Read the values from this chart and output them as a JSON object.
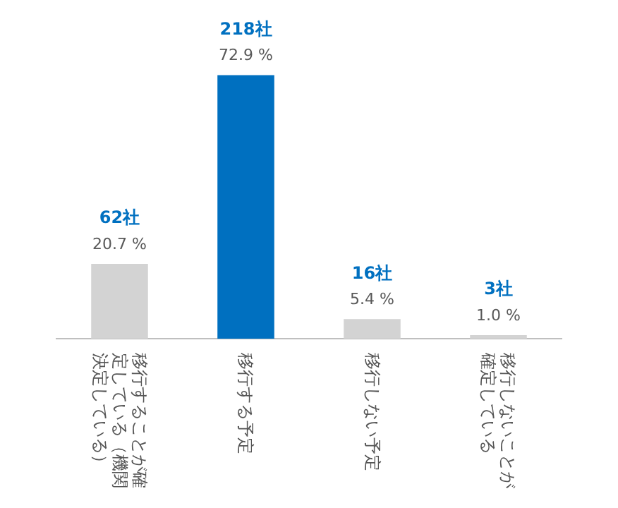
{
  "chart_data": {
    "type": "bar",
    "categories": [
      "移行することが確定している（機関決定している）",
      "移行する予定",
      "移行しない予定",
      "移行しないことが確定している"
    ],
    "values": [
      20.7,
      72.9,
      5.4,
      1.0
    ],
    "colors": [
      "#d3d3d3",
      "#0070c0",
      "#d3d3d3",
      "#d3d3d3"
    ],
    "value_labels": [
      "20.7 %",
      "72.9 %",
      "5.4 %",
      "1.0 %"
    ],
    "annotations": [
      {
        "text": "62社",
        "x": "移行することが確定している（機関決定している）",
        "y": 20.7
      },
      {
        "text": "218社",
        "x": "移行する予定",
        "y": 72.9
      },
      {
        "text": "16社",
        "x": "移行しない予定",
        "y": 5.4
      },
      {
        "text": "3社",
        "x": "移行しないことが確定している",
        "y": 1.0
      }
    ],
    "grid": false,
    "legend": false
  }
}
